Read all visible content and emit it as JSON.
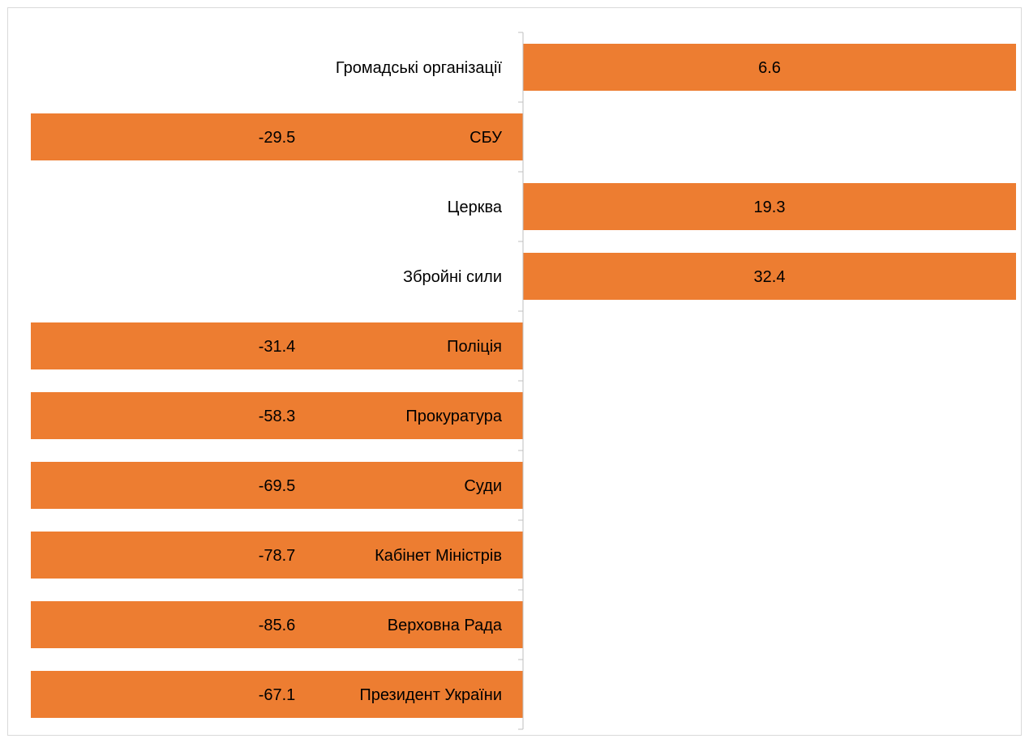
{
  "chart_data": {
    "type": "bar",
    "orientation": "horizontal",
    "categories": [
      "Громадські організації",
      "СБУ",
      "Церква",
      "Збройні сили",
      "Поліція",
      "Прокуратура",
      "Суди",
      "Кабінет Міністрів",
      "Верховна Рада",
      "Президент України"
    ],
    "values": [
      6.6,
      -29.5,
      19.3,
      32.4,
      -31.4,
      -58.3,
      -69.5,
      -78.7,
      -85.6,
      -67.1
    ],
    "bar_color": "#ED7D31",
    "axis_color": "#bfbfbf",
    "title": "",
    "xlabel": "",
    "ylabel": "",
    "grid": false,
    "legend": "none"
  }
}
